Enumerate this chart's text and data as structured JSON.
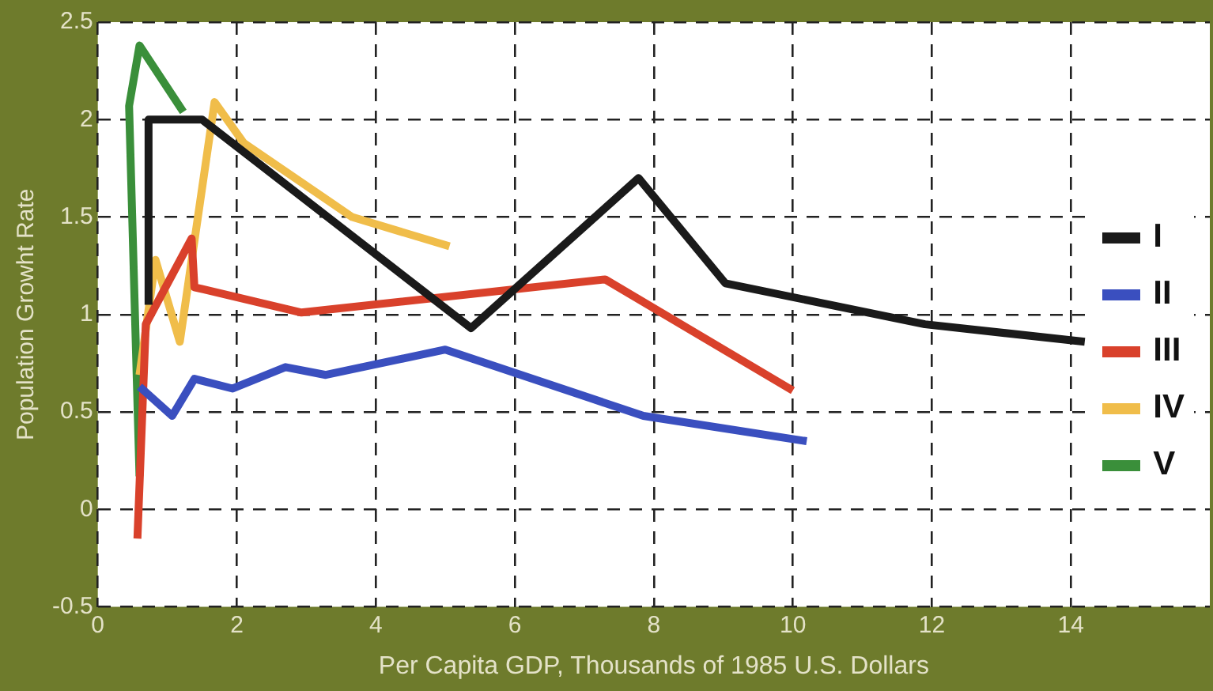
{
  "chart_data": {
    "type": "line",
    "xlabel": "Per Capita GDP, Thousands of 1985 U.S. Dollars",
    "ylabel": "Population Growht Rate",
    "xlim": [
      0,
      16
    ],
    "xticks": [
      0,
      2,
      4,
      6,
      8,
      10,
      12,
      14
    ],
    "ylim": [
      -0.5,
      2.5
    ],
    "yticks": [
      -0.5,
      0,
      0.5,
      1,
      1.5,
      2,
      2.5
    ],
    "grid": true,
    "legend": "right",
    "line_style": "solid",
    "marker": "none",
    "series": [
      {
        "name": "I",
        "color": "#1a1a1a",
        "x": [
          0.73,
          0.73,
          1.5,
          5.37,
          7.78,
          9.03,
          11.9,
          14.2
        ],
        "values": [
          1.05,
          2.0,
          2.0,
          0.93,
          1.7,
          1.16,
          0.95,
          0.86
        ]
      },
      {
        "name": "II",
        "color": "#3a4fbf",
        "x": [
          0.6,
          1.07,
          1.39,
          1.94,
          2.7,
          3.28,
          5.0,
          7.85,
          10.2
        ],
        "values": [
          0.63,
          0.48,
          0.67,
          0.62,
          0.73,
          0.69,
          0.82,
          0.48,
          0.35
        ]
      },
      {
        "name": "III",
        "color": "#d9412b",
        "x": [
          0.57,
          0.69,
          1.35,
          1.39,
          2.93,
          7.3,
          10.0
        ],
        "values": [
          -0.15,
          0.95,
          1.39,
          1.14,
          1.01,
          1.18,
          0.61
        ]
      },
      {
        "name": "IV",
        "color": "#f0bd4a",
        "x": [
          0.6,
          0.83,
          1.18,
          1.68,
          2.1,
          3.66,
          5.06
        ],
        "values": [
          0.69,
          1.28,
          0.86,
          2.09,
          1.88,
          1.5,
          1.35
        ]
      },
      {
        "name": "V",
        "color": "#3a8f3a",
        "x": [
          0.6,
          0.45,
          0.6,
          1.23
        ],
        "values": [
          0.17,
          2.07,
          2.38,
          2.04
        ]
      }
    ]
  }
}
